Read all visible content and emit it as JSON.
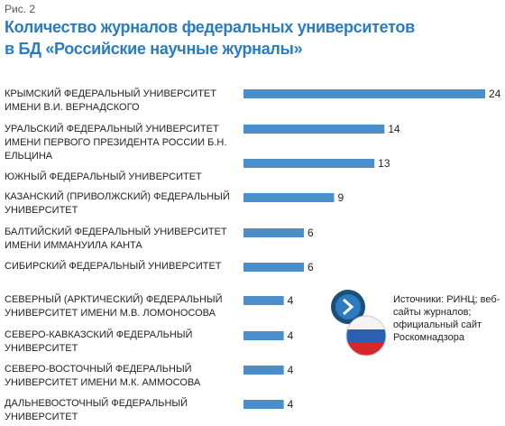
{
  "chart_data": {
    "type": "bar",
    "orientation": "horizontal",
    "figure_label": "Рис. 2",
    "title": [
      "Количество журналов федеральных университетов",
      "в БД «Российские научные журналы»"
    ],
    "categories": [
      "КРЫМСКИЙ ФЕДЕРАЛЬНЫЙ УНИВЕРСИТЕТ ИМЕНИ В.И. ВЕРНАДСКОГО",
      "УРАЛЬСКИЙ ФЕДЕРАЛЬНЫЙ УНИВЕРСИТЕТ ИМЕНИ ПЕРВОГО ПРЕЗИДЕНТА РОССИИ Б.Н. ЕЛЬЦИНА",
      "ЮЖНЫЙ ФЕДЕРАЛЬНЫЙ УНИВЕРСИТЕТ",
      "КАЗАНСКИЙ (ПРИВОЛЖСКИЙ) ФЕДЕРАЛЬНЫЙ УНИВЕРСИТЕТ",
      "БАЛТИЙСКИЙ ФЕДЕРАЛЬНЫЙ УНИВЕРСИТЕТ ИМЕНИ ИММАНУИЛА КАНТА",
      "СИБИРСКИЙ ФЕДЕРАЛЬНЫЙ УНИВЕРСИТЕТ",
      "СЕВЕРНЫЙ (АРКТИЧЕСКИЙ) ФЕДЕРАЛЬНЫЙ УНИВЕРСИТЕТ ИМЕНИ М.В. ЛОМОНОСОВА",
      "СЕВЕРО-КАВКАЗСКИЙ ФЕДЕРАЛЬНЫЙ УНИВЕРСИТЕТ",
      "СЕВЕРО-ВОСТОЧНЫЙ ФЕДЕРАЛЬНЫЙ УНИВЕРСИТЕТ ИМЕНИ М.К. АММОСОВА",
      "ДАЛЬНЕВОСТОЧНЫЙ ФЕДЕРАЛЬНЫЙ УНИВЕРСИТЕТ"
    ],
    "values": [
      24,
      14,
      13,
      9,
      6,
      6,
      4,
      4,
      4,
      4
    ],
    "color": "#4a8fcb",
    "xlim": [
      0,
      24
    ],
    "source": "Источники: РИНЦ; веб-сайты журналов; официальный сайт Роскомнадзора"
  }
}
